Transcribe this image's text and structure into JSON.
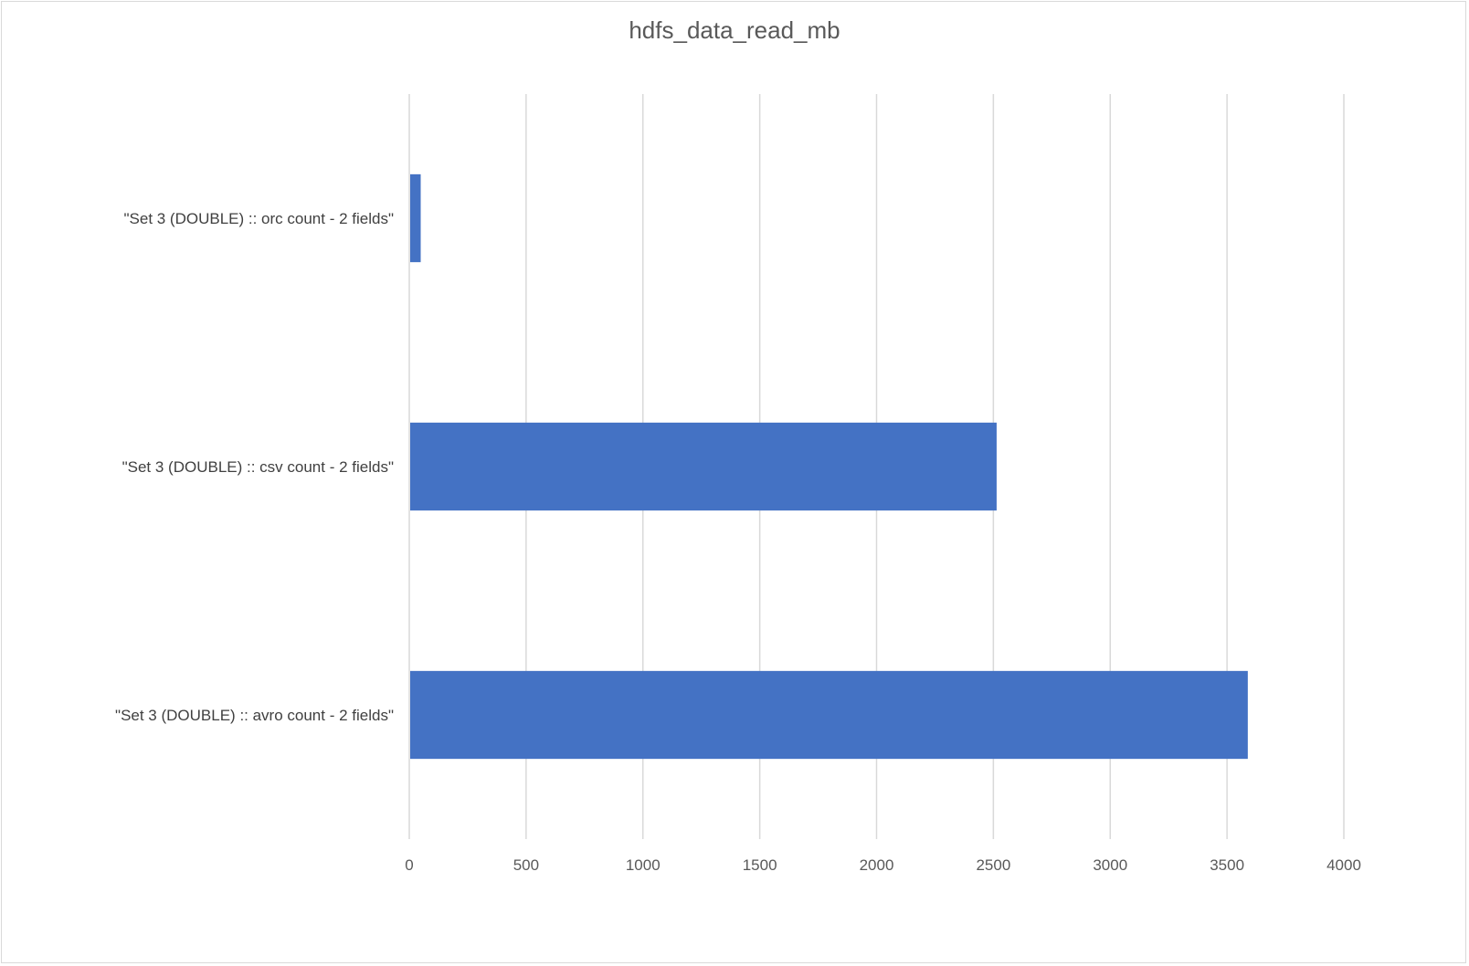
{
  "chart_data": {
    "type": "bar",
    "orientation": "horizontal",
    "title": "hdfs_data_read_mb",
    "categories": [
      "\"Set 3 (DOUBLE) :: orc count - 2 fields\"",
      "\"Set 3 (DOUBLE) :: csv count - 2 fields\"",
      "\"Set 3 (DOUBLE) :: avro count - 2 fields\""
    ],
    "values": [
      45,
      2510,
      3585
    ],
    "xlabel": "",
    "ylabel": "",
    "xlim": [
      0,
      4000
    ],
    "x_ticks": [
      "0",
      "500",
      "1000",
      "1500",
      "2000",
      "2500",
      "3000",
      "3500",
      "4000"
    ],
    "grid": "vertical",
    "legend": "none",
    "bar_color": "#4472C4",
    "gridline_color": "#d9d9d9"
  }
}
